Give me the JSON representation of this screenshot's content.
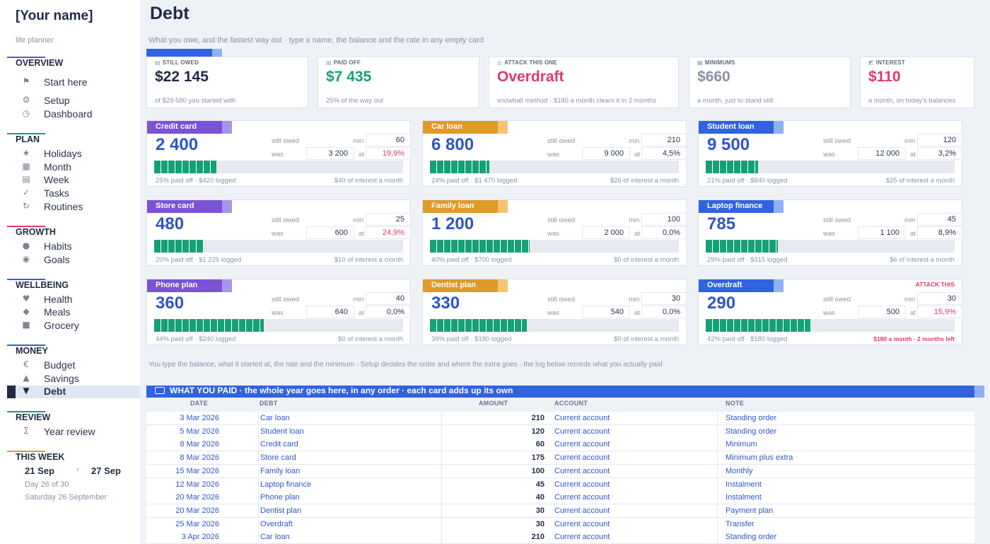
{
  "app": {
    "name": "[Your name]",
    "tagline": "life planner"
  },
  "sections": {
    "overview": "OVERVIEW",
    "plan": "PLAN",
    "growth": "GROWTH",
    "wellbeing": "WELLBEING",
    "money": "MONEY",
    "review": "REVIEW",
    "thisweek": "THIS WEEK"
  },
  "section_colors": {
    "overview": "#6b4fd8",
    "plan": "#15a075",
    "growth": "#e03a6a",
    "wellbeing": "#2f63e0",
    "money": "#2f63e0",
    "review": "#15a075",
    "thisweek": "#e09a2a"
  },
  "nav": {
    "start": "Start here",
    "setup": "Setup",
    "dashboard": "Dashboard",
    "holidays": "Holidays",
    "month": "Month",
    "week": "Week",
    "tasks": "Tasks",
    "routines": "Routines",
    "habits": "Habits",
    "goals": "Goals",
    "health": "Health",
    "meals": "Meals",
    "grocery": "Grocery",
    "budget": "Budget",
    "savings": "Savings",
    "debt": "Debt",
    "yearreview": "Year review"
  },
  "week": {
    "start": "21 Sep",
    "end": "27 Sep",
    "day": "Day 26 of 30",
    "date": "Saturday 26 September"
  },
  "page": {
    "title": "Debt",
    "subtitle": "What you owe, and the fastest way out · type a name, the balance and the rate in any empty card",
    "explain": "You type the balance, what it started at, the rate and the minimum · Setup decides the order and where the extra goes · the log below records what you actually paid"
  },
  "stats": [
    {
      "label": "STILL OWED",
      "icon": "wallet-icon",
      "glyph": "▤",
      "value": "$22 145",
      "note": "of $29 580 you started with",
      "color": "#1f2a44"
    },
    {
      "label": "PAID OFF",
      "icon": "receipt-icon",
      "glyph": "▤",
      "value": "$7 435",
      "note": "25% of the way out",
      "color": "#15a075"
    },
    {
      "label": "ATTACK THIS ONE",
      "icon": "target-icon",
      "glyph": "◎",
      "value": "Overdraft",
      "note": "snowball method · $180 a month clears it in 2 months",
      "color": "#e03a6a"
    },
    {
      "label": "MINIMUMS",
      "icon": "calendar-icon",
      "glyph": "▦",
      "value": "$660",
      "note": "a month, just to stand still",
      "color": "#8a93a6"
    },
    {
      "label": "INTEREST",
      "icon": "chart-icon",
      "glyph": "◩",
      "value": "$110",
      "note": "a month, on today's balances",
      "color": "#e03a6a"
    }
  ],
  "card_labels": {
    "still_owed": "still owed",
    "was": "was",
    "min": "min",
    "at": "at"
  },
  "cards": [
    {
      "name": "Credit card",
      "color": "#7a52d6",
      "accent": "#a993ea",
      "balance": "2 400",
      "min": "60",
      "was": "3 200",
      "rate": "19,9%",
      "rate_hot": true,
      "progress": 0.25,
      "foot_left": "25% paid off · $420 logged",
      "foot_right": "$40 of interest a month"
    },
    {
      "name": "Car loan",
      "color": "#e09a2a",
      "accent": "#f3c473",
      "balance": "6 800",
      "min": "210",
      "was": "9 000",
      "rate": "4,5%",
      "rate_hot": false,
      "progress": 0.24,
      "foot_left": "24% paid off · $1 470 logged",
      "foot_right": "$26 of interest a month"
    },
    {
      "name": "Student loan",
      "color": "#2f63e0",
      "accent": "#8fb0f5",
      "balance": "9 500",
      "min": "120",
      "was": "12 000",
      "rate": "3,2%",
      "rate_hot": false,
      "progress": 0.21,
      "foot_left": "21% paid off · $840 logged",
      "foot_right": "$25 of interest a month"
    },
    {
      "name": "Store card",
      "color": "#7a52d6",
      "accent": "#a993ea",
      "balance": "480",
      "min": "25",
      "was": "600",
      "rate": "24,9%",
      "rate_hot": true,
      "progress": 0.2,
      "foot_left": "20% paid off · $1 225 logged",
      "foot_right": "$10 of interest a month"
    },
    {
      "name": "Family loan",
      "color": "#e09a2a",
      "accent": "#f3c473",
      "balance": "1 200",
      "min": "100",
      "was": "2 000",
      "rate": "0,0%",
      "rate_hot": false,
      "progress": 0.4,
      "foot_left": "40% paid off · $700 logged",
      "foot_right": "$0 of interest a month"
    },
    {
      "name": "Laptop finance",
      "color": "#2f63e0",
      "accent": "#8fb0f5",
      "balance": "785",
      "min": "45",
      "was": "1 100",
      "rate": "8,9%",
      "rate_hot": false,
      "progress": 0.29,
      "foot_left": "29% paid off · $315 logged",
      "foot_right": "$6 of interest a month"
    },
    {
      "name": "Phone plan",
      "color": "#7a52d6",
      "accent": "#a993ea",
      "balance": "360",
      "min": "40",
      "was": "640",
      "rate": "0,0%",
      "rate_hot": false,
      "progress": 0.44,
      "foot_left": "44% paid off · $240 logged",
      "foot_right": "$0 of interest a month"
    },
    {
      "name": "Dentist plan",
      "color": "#e09a2a",
      "accent": "#f3c473",
      "balance": "330",
      "min": "30",
      "was": "540",
      "rate": "0,0%",
      "rate_hot": false,
      "progress": 0.39,
      "foot_left": "39% paid off · $180 logged",
      "foot_right": "$0 of interest a month"
    },
    {
      "name": "Overdraft",
      "color": "#2f63e0",
      "accent": "#8fb0f5",
      "balance": "290",
      "min": "30",
      "was": "500",
      "rate": "15,9%",
      "rate_hot": true,
      "progress": 0.42,
      "foot_left": "42% paid off · $180 logged",
      "foot_right": "",
      "attack": "ATTACK THIS",
      "foot_alert": "$180 a month · 2 months left"
    }
  ],
  "log": {
    "title": "WHAT YOU PAID  ·  the whole year goes here, in any order  ·  each card adds up its own",
    "columns": [
      "DATE",
      "DEBT",
      "AMOUNT",
      "ACCOUNT",
      "NOTE"
    ],
    "rows": [
      {
        "date": "3 Mar 2026",
        "debt": "Car loan",
        "amount": "210",
        "account": "Current account",
        "note": "Standing order"
      },
      {
        "date": "5 Mar 2026",
        "debt": "Student loan",
        "amount": "120",
        "account": "Current account",
        "note": "Standing order"
      },
      {
        "date": "8 Mar 2026",
        "debt": "Credit card",
        "amount": "60",
        "account": "Current account",
        "note": "Minimum"
      },
      {
        "date": "8 Mar 2026",
        "debt": "Store card",
        "amount": "175",
        "account": "Current account",
        "note": "Minimum plus extra"
      },
      {
        "date": "15 Mar 2026",
        "debt": "Family loan",
        "amount": "100",
        "account": "Current account",
        "note": "Monthly"
      },
      {
        "date": "12 Mar 2026",
        "debt": "Laptop finance",
        "amount": "45",
        "account": "Current account",
        "note": "Instalment"
      },
      {
        "date": "20 Mar 2026",
        "debt": "Phone plan",
        "amount": "40",
        "account": "Current account",
        "note": "Instalment"
      },
      {
        "date": "20 Mar 2026",
        "debt": "Dentist plan",
        "amount": "30",
        "account": "Current account",
        "note": "Payment plan"
      },
      {
        "date": "25 Mar 2026",
        "debt": "Overdraft",
        "amount": "30",
        "account": "Current account",
        "note": "Transfer"
      },
      {
        "date": "3 Apr 2026",
        "debt": "Car loan",
        "amount": "210",
        "account": "Current account",
        "note": "Standing order"
      }
    ]
  }
}
